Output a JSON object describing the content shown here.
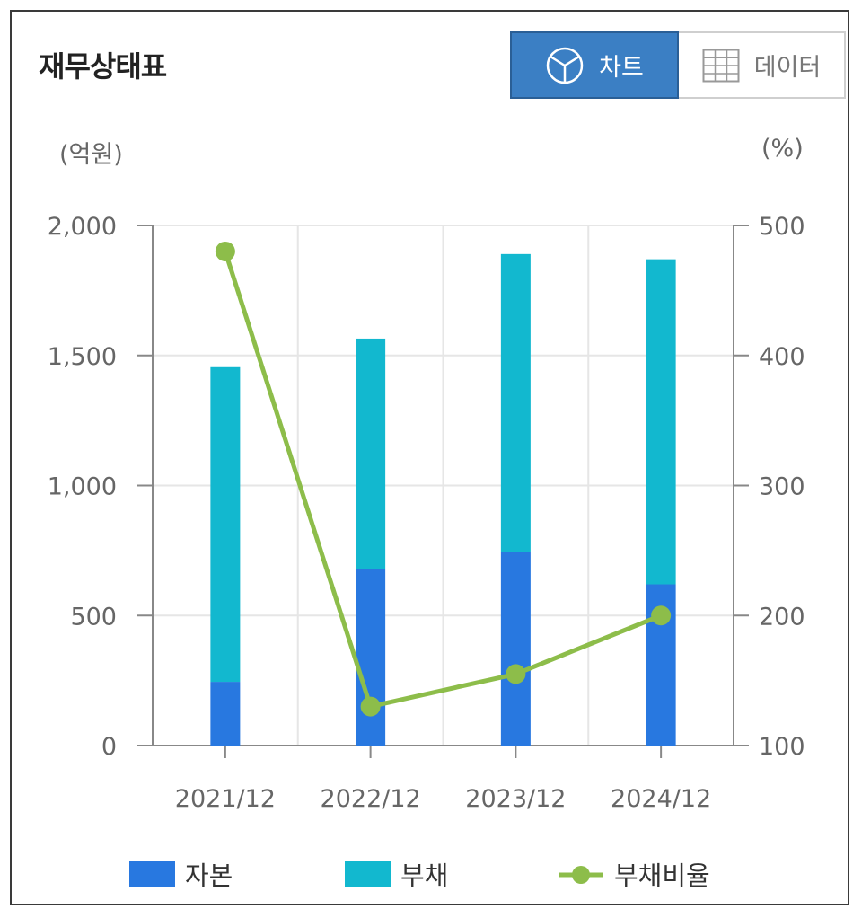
{
  "header": {
    "title": "재무상태표",
    "tabs": [
      {
        "label": "차트",
        "icon": "pie-chart-icon",
        "active": true
      },
      {
        "label": "데이터",
        "icon": "table-grid-icon",
        "active": false
      }
    ]
  },
  "colors": {
    "equity": "#2878e0",
    "liabilities": "#12b8cf",
    "ratio": "#8dbd4a",
    "tab_active": "#3b7fc4"
  },
  "chart_data": {
    "type": "bar",
    "stacked": true,
    "categories": [
      "2021/12",
      "2022/12",
      "2023/12",
      "2024/12"
    ],
    "series": [
      {
        "name": "자본",
        "type": "bar",
        "axis": "left",
        "values": [
          245,
          680,
          745,
          620
        ]
      },
      {
        "name": "부채",
        "type": "bar",
        "axis": "left",
        "values": [
          1210,
          885,
          1145,
          1250
        ]
      },
      {
        "name": "부채비율",
        "type": "line",
        "axis": "right",
        "values": [
          480,
          130,
          155,
          200
        ]
      }
    ],
    "y_left": {
      "unit": "(억원)",
      "range": [
        0,
        2000
      ],
      "ticks": [
        "0",
        "500",
        "1,000",
        "1,500",
        "2,000"
      ]
    },
    "y_right": {
      "unit": "(%)",
      "range": [
        100,
        500
      ],
      "ticks": [
        "100",
        "200",
        "300",
        "400",
        "500"
      ]
    },
    "grid": true,
    "legend": "bottom"
  }
}
